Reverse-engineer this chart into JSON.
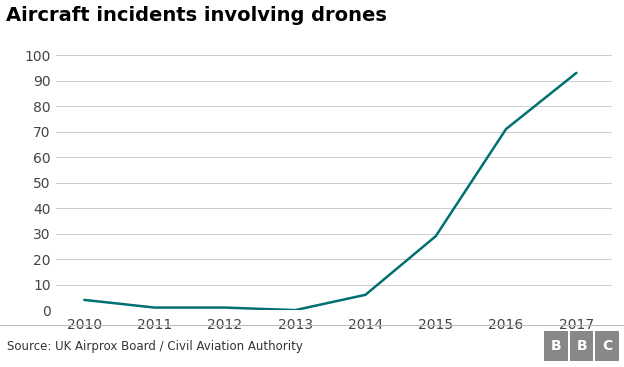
{
  "title": "Aircraft incidents involving drones",
  "years": [
    2010,
    2011,
    2012,
    2013,
    2014,
    2015,
    2016,
    2017
  ],
  "values": [
    4,
    1,
    1,
    0,
    6,
    29,
    71,
    93
  ],
  "line_color": "#007070",
  "line_width": 1.8,
  "background_color": "#ffffff",
  "plot_bg_color": "#ffffff",
  "grid_color": "#cccccc",
  "title_fontsize": 14,
  "tick_fontsize": 10,
  "ylim": [
    0,
    100
  ],
  "yticks": [
    0,
    10,
    20,
    30,
    40,
    50,
    60,
    70,
    80,
    90,
    100
  ],
  "source_text": "Source: UK Airprox Board / Civil Aviation Authority",
  "footer_bg_color": "#f2f2f2",
  "footer_line_color": "#bbbbbb",
  "bbc_text": "BBC",
  "title_color": "#000000",
  "tick_color": "#444444",
  "source_fontsize": 8.5,
  "bbc_fontsize": 10,
  "bbc_box_color": "#888888"
}
